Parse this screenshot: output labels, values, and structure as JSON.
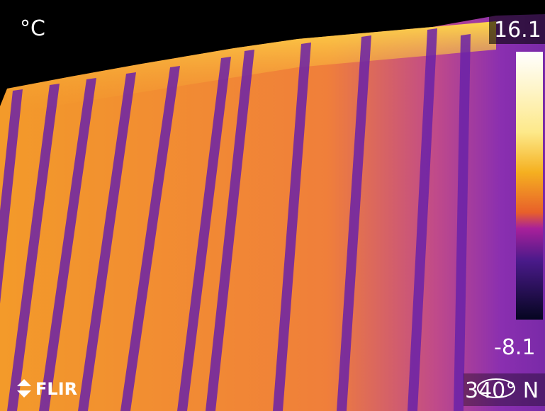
{
  "unit": "°C",
  "scale": {
    "max": 16.1,
    "min": -8.1
  },
  "logo": "FLIR",
  "compass": "340° N"
}
